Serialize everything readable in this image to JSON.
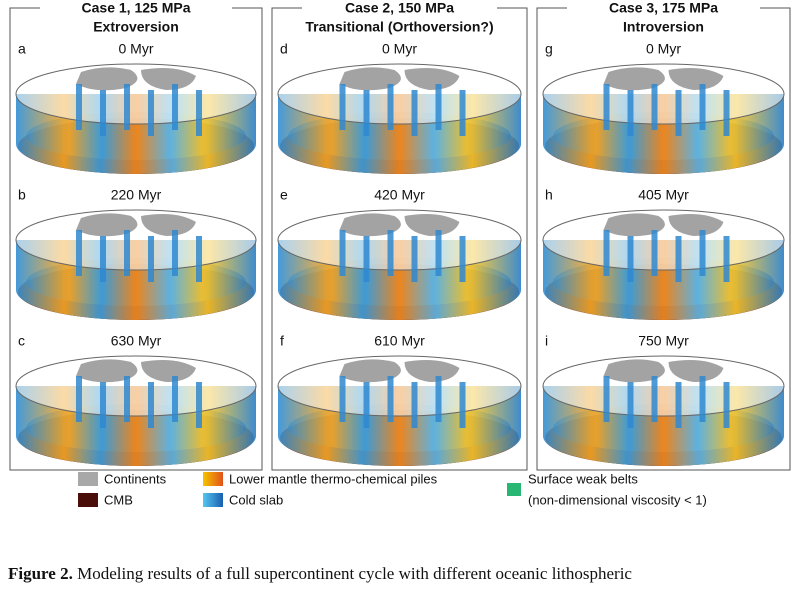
{
  "columns": [
    {
      "title": "Case 1, 125 MPa",
      "subtitle": "Extroversion",
      "panels": [
        {
          "letter": "a",
          "time": "0 Myr"
        },
        {
          "letter": "b",
          "time": "220 Myr"
        },
        {
          "letter": "c",
          "time": "630 Myr"
        }
      ]
    },
    {
      "title": "Case 2, 150 MPa",
      "subtitle": "Transitional (Orthoversion?)",
      "panels": [
        {
          "letter": "d",
          "time": "0 Myr"
        },
        {
          "letter": "e",
          "time": "420 Myr"
        },
        {
          "letter": "f",
          "time": "610 Myr"
        }
      ]
    },
    {
      "title": "Case 3, 175 MPa",
      "subtitle": "Introversion",
      "panels": [
        {
          "letter": "g",
          "time": "0 Myr"
        },
        {
          "letter": "h",
          "time": "405 Myr"
        },
        {
          "letter": "i",
          "time": "750 Myr"
        }
      ]
    }
  ],
  "legend": {
    "continents": "Continents",
    "cmb": "CMB",
    "piles": "Lower mantle thermo-chemical piles",
    "slab": "Cold slab",
    "weak_belts": "Surface weak belts",
    "weak_belts_note": "(non-dimensional viscosity < 1)"
  },
  "caption": {
    "label": "Figure 2.",
    "text": " Modeling results of a full supercontinent cycle with different oceanic lithospheric"
  }
}
